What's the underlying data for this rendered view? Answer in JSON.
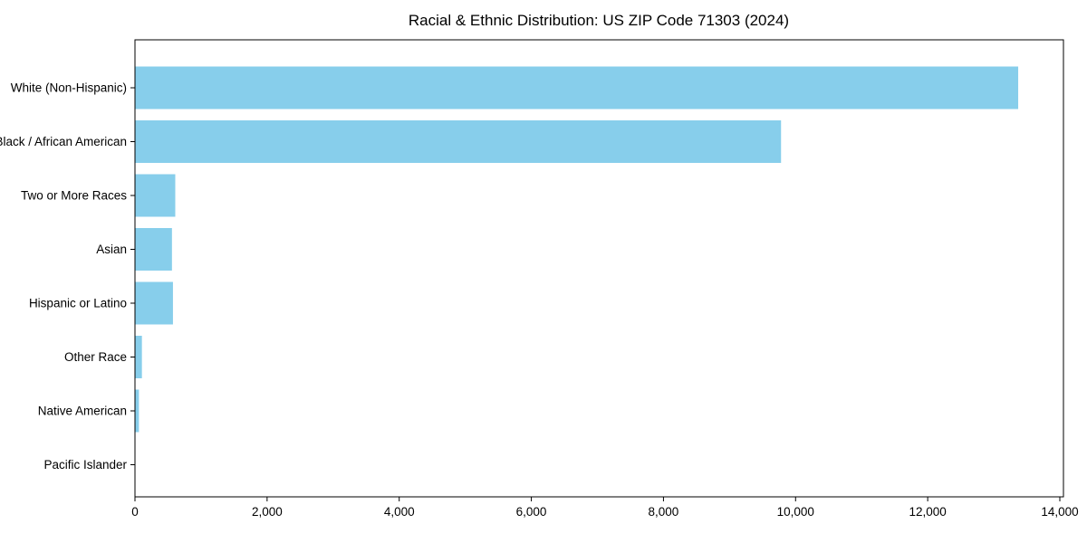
{
  "chart_data": {
    "type": "bar",
    "orientation": "horizontal",
    "title": "Racial & Ethnic Distribution: US ZIP Code 71303 (2024)",
    "categories": [
      "White (Non-Hispanic)",
      "Black / African American",
      "Two or More Races",
      "Asian",
      "Hispanic or Latino",
      "Other Race",
      "Native American",
      "Pacific Islander"
    ],
    "values": [
      13370,
      9780,
      610,
      560,
      575,
      105,
      60,
      0
    ],
    "xlabel": "",
    "ylabel": "",
    "xlim": [
      0,
      14055
    ],
    "xticks": [
      0,
      2000,
      4000,
      6000,
      8000,
      10000,
      12000,
      14000
    ],
    "grid": false,
    "legend": "none",
    "bar_color": "#87CEEB",
    "spine_color": "#000000",
    "text_color": "#000000",
    "background": "#ffffff"
  }
}
